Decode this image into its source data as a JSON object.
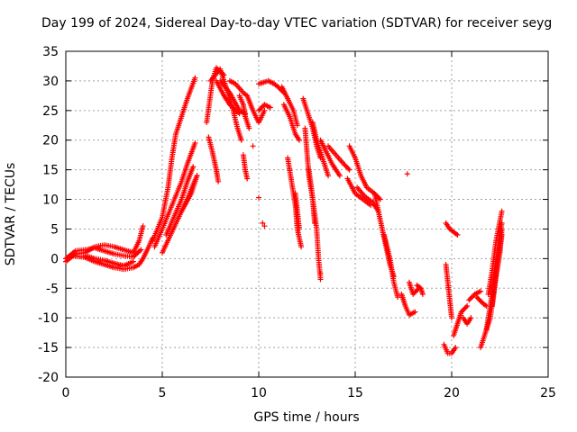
{
  "chart_data": {
    "type": "scatter",
    "title": "Day 199 of 2024, Sidereal Day-to-day VTEC variation (SDTVAR) for receiver seyg",
    "xlabel": "GPS time / hours",
    "ylabel": "SDTVAR / TECUs",
    "xlim": [
      0,
      25
    ],
    "ylim": [
      -20,
      35
    ],
    "xticks": [
      0,
      5,
      10,
      15,
      20,
      25
    ],
    "yticks": [
      -20,
      -15,
      -10,
      -5,
      0,
      5,
      10,
      15,
      20,
      25,
      30,
      35
    ],
    "grid": true,
    "marker": "+",
    "color": "#ff0000",
    "tracks": [
      {
        "name": "early-upper",
        "points": [
          [
            0,
            -0.5
          ],
          [
            0.5,
            0.8
          ],
          [
            1,
            1
          ],
          [
            1.5,
            2
          ],
          [
            2,
            2.3
          ],
          [
            2.5,
            2
          ],
          [
            3,
            1.5
          ],
          [
            3.5,
            1
          ],
          [
            3.8,
            3
          ],
          [
            4,
            5.5
          ]
        ]
      },
      {
        "name": "early-mid",
        "points": [
          [
            0,
            0
          ],
          [
            0.5,
            1.3
          ],
          [
            1,
            1.5
          ],
          [
            1.5,
            1.8
          ],
          [
            2,
            1.3
          ],
          [
            2.5,
            0.8
          ],
          [
            3,
            0.5
          ],
          [
            3.5,
            0.3
          ],
          [
            3.9,
            1.5
          ]
        ]
      },
      {
        "name": "early-lower",
        "points": [
          [
            0.3,
            0.5
          ],
          [
            1,
            0.2
          ],
          [
            1.5,
            -0.5
          ],
          [
            2,
            -1
          ],
          [
            2.5,
            -1.5
          ],
          [
            3,
            -1.8
          ],
          [
            3.5,
            -1.5
          ],
          [
            3.8,
            -1
          ],
          [
            4,
            0
          ],
          [
            4.3,
            2
          ],
          [
            4.5,
            3.5
          ]
        ]
      },
      {
        "name": "early-low2",
        "points": [
          [
            1,
            0.5
          ],
          [
            1.5,
            0
          ],
          [
            2,
            -0.3
          ],
          [
            2.5,
            -0.8
          ],
          [
            3,
            -1.2
          ],
          [
            3.5,
            -0.5
          ]
        ]
      },
      {
        "name": "rise-main",
        "points": [
          [
            4.5,
            3
          ],
          [
            5,
            7
          ],
          [
            5.3,
            12
          ],
          [
            5.5,
            17
          ],
          [
            5.7,
            21
          ],
          [
            6,
            24
          ],
          [
            6.3,
            27
          ],
          [
            6.7,
            30.5
          ]
        ]
      },
      {
        "name": "rise-a",
        "points": [
          [
            4.6,
            2
          ],
          [
            5,
            5
          ],
          [
            5.5,
            9
          ],
          [
            6,
            13
          ],
          [
            6.3,
            16
          ],
          [
            6.7,
            19.5
          ]
        ]
      },
      {
        "name": "rise-b",
        "points": [
          [
            5.2,
            4
          ],
          [
            5.6,
            7
          ],
          [
            6,
            10
          ],
          [
            6.3,
            13
          ],
          [
            6.6,
            15.5
          ]
        ]
      },
      {
        "name": "rise-c",
        "points": [
          [
            5,
            1
          ],
          [
            5.5,
            4.5
          ],
          [
            6,
            8
          ],
          [
            6.5,
            11
          ],
          [
            6.8,
            14
          ]
        ]
      },
      {
        "name": "rise-d",
        "points": [
          [
            6,
            8
          ],
          [
            6.3,
            10
          ],
          [
            6.6,
            12.5
          ],
          [
            6.8,
            14
          ]
        ]
      },
      {
        "name": "peak-1",
        "points": [
          [
            7.3,
            23
          ],
          [
            7.6,
            30
          ],
          [
            7.8,
            32.2
          ],
          [
            8.2,
            31
          ]
        ]
      },
      {
        "name": "peak-2",
        "points": [
          [
            7.5,
            30
          ],
          [
            8,
            32
          ],
          [
            8.3,
            29
          ],
          [
            8.6,
            26
          ],
          [
            8.9,
            22
          ],
          [
            9.1,
            20
          ]
        ]
      },
      {
        "name": "peak-3",
        "points": [
          [
            7.8,
            30
          ],
          [
            8.2,
            27.5
          ],
          [
            8.5,
            26
          ],
          [
            8.8,
            25
          ],
          [
            9,
            24.5
          ]
        ]
      },
      {
        "name": "peak-4",
        "points": [
          [
            8.5,
            30
          ],
          [
            8.8,
            29.5
          ],
          [
            9.2,
            28
          ],
          [
            9.4,
            27.5
          ],
          [
            9.7,
            25
          ],
          [
            10,
            23
          ],
          [
            10.3,
            25
          ]
        ]
      },
      {
        "name": "peak-5",
        "points": [
          [
            9,
            27.5
          ],
          [
            9.2,
            26
          ],
          [
            9.3,
            24
          ],
          [
            9.5,
            22
          ]
        ]
      },
      {
        "name": "peak-6",
        "points": [
          [
            8,
            30
          ],
          [
            8.5,
            28
          ],
          [
            9,
            25
          ],
          [
            9.3,
            24.5
          ]
        ]
      },
      {
        "name": "left-drop-1",
        "points": [
          [
            7.4,
            20.5
          ],
          [
            7.6,
            18
          ],
          [
            7.8,
            15
          ],
          [
            7.9,
            13
          ]
        ]
      },
      {
        "name": "left-drop-2",
        "points": [
          [
            9.2,
            17.5
          ],
          [
            9.3,
            15
          ],
          [
            9.4,
            13.5
          ]
        ]
      },
      {
        "name": "mid-top",
        "points": [
          [
            10,
            29.5
          ],
          [
            10.5,
            30
          ],
          [
            10.8,
            29.5
          ],
          [
            11,
            29
          ],
          [
            11.3,
            28
          ]
        ]
      },
      {
        "name": "mid-top2",
        "points": [
          [
            10,
            25
          ],
          [
            10.3,
            26
          ],
          [
            10.6,
            25.5
          ]
        ]
      },
      {
        "name": "center-1",
        "points": [
          [
            11.2,
            29
          ],
          [
            11.5,
            27
          ],
          [
            11.8,
            25
          ],
          [
            12,
            22.5
          ]
        ]
      },
      {
        "name": "center-2",
        "points": [
          [
            11.3,
            26
          ],
          [
            11.6,
            24
          ],
          [
            11.9,
            21
          ],
          [
            12.1,
            20
          ]
        ]
      },
      {
        "name": "center-3",
        "points": [
          [
            11.5,
            17
          ],
          [
            11.7,
            13
          ],
          [
            11.9,
            9
          ],
          [
            12,
            5
          ],
          [
            12.2,
            2
          ]
        ]
      },
      {
        "name": "center-4",
        "points": [
          [
            11.9,
            11
          ],
          [
            12,
            8
          ],
          [
            12.1,
            5
          ]
        ]
      },
      {
        "name": "center-5",
        "points": [
          [
            12.3,
            27
          ],
          [
            12.5,
            25
          ],
          [
            12.8,
            22
          ],
          [
            13,
            19
          ],
          [
            13.2,
            17
          ]
        ]
      },
      {
        "name": "center-6",
        "points": [
          [
            12.4,
            22
          ],
          [
            12.5,
            18
          ],
          [
            12.6,
            14
          ],
          [
            12.8,
            10
          ],
          [
            12.9,
            6
          ]
        ]
      },
      {
        "name": "center-7",
        "points": [
          [
            12.6,
            15
          ],
          [
            12.8,
            10
          ],
          [
            13,
            5
          ],
          [
            13.1,
            0
          ],
          [
            13.2,
            -3.5
          ]
        ]
      },
      {
        "name": "center-8",
        "points": [
          [
            12.8,
            23
          ],
          [
            13,
            20
          ],
          [
            13.3,
            17
          ],
          [
            13.6,
            14
          ]
        ]
      },
      {
        "name": "center-9",
        "points": [
          [
            13.2,
            20
          ],
          [
            13.5,
            18
          ],
          [
            13.8,
            16
          ],
          [
            14.2,
            14
          ]
        ]
      },
      {
        "name": "center-10",
        "points": [
          [
            13.6,
            19
          ],
          [
            14,
            17.5
          ],
          [
            14.4,
            16
          ],
          [
            14.7,
            15
          ]
        ]
      },
      {
        "name": "late-1",
        "points": [
          [
            14.7,
            19
          ],
          [
            15,
            17
          ],
          [
            15.3,
            14
          ],
          [
            15.6,
            12
          ],
          [
            16,
            11
          ],
          [
            16.3,
            10
          ]
        ]
      },
      {
        "name": "late-2",
        "points": [
          [
            14.6,
            13.5
          ],
          [
            15,
            11
          ],
          [
            15.4,
            10
          ],
          [
            15.8,
            9
          ]
        ]
      },
      {
        "name": "late-3",
        "points": [
          [
            15.1,
            12
          ],
          [
            15.5,
            10.5
          ],
          [
            15.9,
            9.5
          ],
          [
            16.2,
            8
          ]
        ]
      },
      {
        "name": "late-4",
        "points": [
          [
            16,
            11
          ],
          [
            16.2,
            8
          ],
          [
            16.4,
            5
          ],
          [
            16.6,
            2
          ],
          [
            16.8,
            -1
          ],
          [
            17,
            -3
          ]
        ]
      },
      {
        "name": "late-5",
        "points": [
          [
            16.5,
            4
          ],
          [
            16.8,
            0
          ],
          [
            17,
            -4
          ],
          [
            17.2,
            -6.5
          ]
        ]
      },
      {
        "name": "late-6",
        "points": [
          [
            17.4,
            -6
          ],
          [
            17.6,
            -8
          ],
          [
            17.8,
            -9.5
          ],
          [
            18.1,
            -9
          ]
        ]
      },
      {
        "name": "late-7",
        "points": [
          [
            17.8,
            -4
          ],
          [
            18,
            -6
          ],
          [
            18.3,
            -5
          ]
        ]
      },
      {
        "name": "late-8",
        "points": [
          [
            18.2,
            -4.5
          ],
          [
            18.4,
            -5
          ],
          [
            18.5,
            -6
          ]
        ]
      },
      {
        "name": "late-9",
        "points": [
          [
            19.7,
            -1
          ],
          [
            19.8,
            -4
          ],
          [
            19.9,
            -7
          ],
          [
            20,
            -10
          ]
        ]
      },
      {
        "name": "late-10",
        "points": [
          [
            19.7,
            6
          ],
          [
            19.9,
            5
          ],
          [
            20.1,
            4.5
          ],
          [
            20.3,
            4
          ]
        ]
      },
      {
        "name": "late-11",
        "points": [
          [
            19.6,
            -14.5
          ],
          [
            19.8,
            -16
          ],
          [
            20,
            -16
          ],
          [
            20.2,
            -15
          ]
        ]
      },
      {
        "name": "late-12",
        "points": [
          [
            20.1,
            -13
          ],
          [
            20.3,
            -11
          ],
          [
            20.5,
            -9
          ],
          [
            20.8,
            -8
          ]
        ]
      },
      {
        "name": "late-13",
        "points": [
          [
            20.6,
            -10
          ],
          [
            20.8,
            -11
          ],
          [
            21,
            -10
          ]
        ]
      },
      {
        "name": "late-14",
        "points": [
          [
            20.9,
            -7
          ],
          [
            21.2,
            -6
          ],
          [
            21.5,
            -5.5
          ]
        ]
      },
      {
        "name": "late-15",
        "points": [
          [
            21.3,
            -6.5
          ],
          [
            21.6,
            -7.5
          ],
          [
            21.8,
            -8
          ]
        ]
      },
      {
        "name": "late-16",
        "points": [
          [
            21.5,
            -15
          ],
          [
            21.7,
            -13
          ],
          [
            22,
            -10
          ],
          [
            22.2,
            -5
          ],
          [
            22.4,
            0
          ],
          [
            22.6,
            4
          ]
        ]
      },
      {
        "name": "late-17",
        "points": [
          [
            21.8,
            -12
          ],
          [
            22,
            -8
          ],
          [
            22.2,
            -3
          ],
          [
            22.4,
            2
          ],
          [
            22.6,
            6
          ]
        ]
      },
      {
        "name": "late-18",
        "points": [
          [
            21.9,
            -6
          ],
          [
            22.1,
            -2
          ],
          [
            22.3,
            3
          ],
          [
            22.6,
            8
          ]
        ]
      },
      {
        "name": "late-19",
        "points": [
          [
            22.1,
            -8
          ],
          [
            22.3,
            -3
          ],
          [
            22.5,
            1
          ],
          [
            22.6,
            5
          ]
        ]
      }
    ],
    "isolated_points": [
      [
        9.7,
        19
      ],
      [
        10,
        10.3
      ],
      [
        10.2,
        6
      ],
      [
        10.3,
        5.5
      ],
      [
        17.7,
        14.3
      ],
      [
        13.2,
        -2.5
      ]
    ]
  }
}
